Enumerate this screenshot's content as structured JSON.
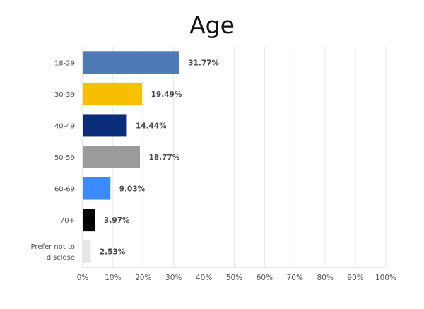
{
  "chart_data": {
    "type": "bar",
    "orientation": "horizontal",
    "title": "Age",
    "categories": [
      "18-29",
      "30-39",
      "40-49",
      "50-59",
      "60-69",
      "70+",
      "Prefer not to disclose"
    ],
    "values": [
      31.77,
      19.49,
      14.44,
      18.77,
      9.03,
      3.97,
      2.53
    ],
    "value_labels": [
      "31.77%",
      "19.49%",
      "14.44%",
      "18.77%",
      "9.03%",
      "3.97%",
      "2.53%"
    ],
    "colors": [
      "#4f7ab8",
      "#f8bf00",
      "#0a2d79",
      "#9b9b9b",
      "#3b8bff",
      "#000000",
      "#e6e6e6"
    ],
    "xlim": [
      0,
      100
    ],
    "xticks": [
      "0%",
      "10%",
      "20%",
      "30%",
      "40%",
      "50%",
      "60%",
      "70%",
      "80%",
      "90%",
      "100%"
    ],
    "grid": true,
    "xlabel": "",
    "ylabel": ""
  }
}
